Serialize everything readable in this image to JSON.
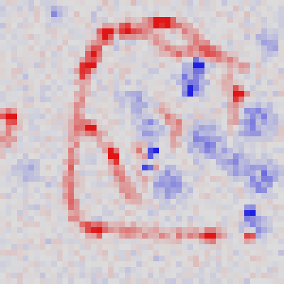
{
  "image": {
    "kind": "attribution heatmap",
    "grid": {
      "cols": 50,
      "rows": 50
    },
    "color_scale": {
      "neutral": "#dcdcdc",
      "positive": "#e01616",
      "negative": "#2020e0"
    },
    "seed": 20240601
  }
}
